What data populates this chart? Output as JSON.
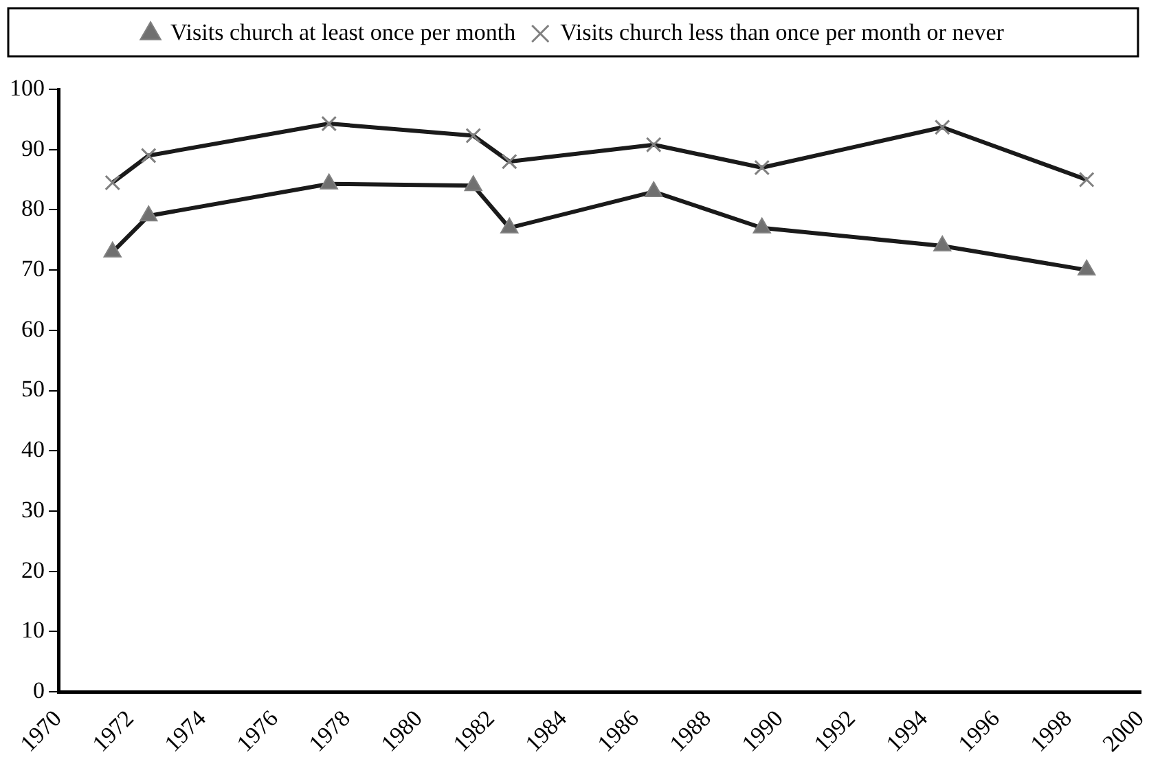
{
  "chart_data": {
    "type": "line",
    "x": [
      1971.5,
      1972.5,
      1977.5,
      1981.5,
      1982.5,
      1986.5,
      1989.5,
      1994.5,
      1998.5
    ],
    "series": [
      {
        "name": "Visits church at least once per month",
        "color": "#1a1a1a",
        "marker": "triangle",
        "values": [
          73,
          79,
          84.3,
          84,
          77,
          83,
          77,
          74,
          70
        ]
      },
      {
        "name": "Visits church less than once per month or never",
        "color": "#1a1a1a",
        "marker": "cross",
        "values": [
          84.5,
          89,
          94.3,
          92.3,
          88,
          90.8,
          87,
          93.7,
          85
        ]
      }
    ],
    "xlim": [
      1970,
      2000
    ],
    "xticks": [
      1970,
      1972,
      1974,
      1976,
      1978,
      1980,
      1982,
      1984,
      1986,
      1988,
      1990,
      1992,
      1994,
      1996,
      1998,
      2000
    ],
    "ylim": [
      0,
      100
    ],
    "yticks": [
      0,
      10,
      20,
      30,
      40,
      50,
      60,
      70,
      80,
      90,
      100
    ],
    "grid": false,
    "legend": "top",
    "line_style": "solid"
  }
}
